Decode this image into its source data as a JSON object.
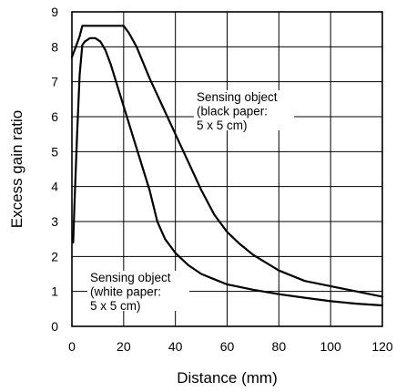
{
  "chart_data": {
    "type": "line",
    "xlabel": "Distance (mm)",
    "ylabel": "Excess gain ratio",
    "xlim": [
      0,
      120
    ],
    "ylim": [
      0,
      9
    ],
    "xticks": [
      "0",
      "20",
      "40",
      "60",
      "80",
      "100",
      "120"
    ],
    "yticks": [
      "0",
      "1",
      "2",
      "3",
      "4",
      "5",
      "6",
      "7",
      "8",
      "9"
    ],
    "grid": true,
    "series": [
      {
        "name": "Sensing object (black paper: 5 x 5 cm)",
        "x": [
          0,
          1,
          2,
          3,
          4,
          20,
          22,
          25,
          30,
          35,
          40,
          45,
          50,
          55,
          60,
          65,
          70,
          80,
          90,
          100,
          110,
          120
        ],
        "y": [
          7.7,
          7.9,
          8.1,
          8.3,
          8.6,
          8.6,
          8.4,
          8.0,
          7.1,
          6.3,
          5.5,
          4.7,
          3.9,
          3.2,
          2.7,
          2.35,
          2.05,
          1.6,
          1.3,
          1.15,
          1.0,
          0.85
        ]
      },
      {
        "name": "Sensing object (white paper: 5 x 5 cm)",
        "x": [
          0.5,
          1,
          2,
          3,
          4,
          5,
          7,
          9,
          11,
          13,
          15,
          20,
          25,
          30,
          33,
          36,
          40,
          45,
          50,
          55,
          60,
          70,
          80,
          90,
          100,
          110,
          120
        ],
        "y": [
          2.4,
          3.5,
          5.5,
          7.2,
          8.05,
          8.15,
          8.25,
          8.25,
          8.15,
          7.9,
          7.5,
          6.3,
          5.1,
          3.9,
          3.0,
          2.5,
          2.1,
          1.75,
          1.5,
          1.35,
          1.2,
          1.05,
          0.92,
          0.82,
          0.72,
          0.65,
          0.6
        ]
      }
    ],
    "annotations": [
      {
        "lines": [
          "Sensing object",
          "(black paper:",
          "5 x 5 cm)"
        ]
      },
      {
        "lines": [
          "Sensing object",
          "(white paper:",
          "5 x 5 cm)"
        ]
      }
    ]
  }
}
